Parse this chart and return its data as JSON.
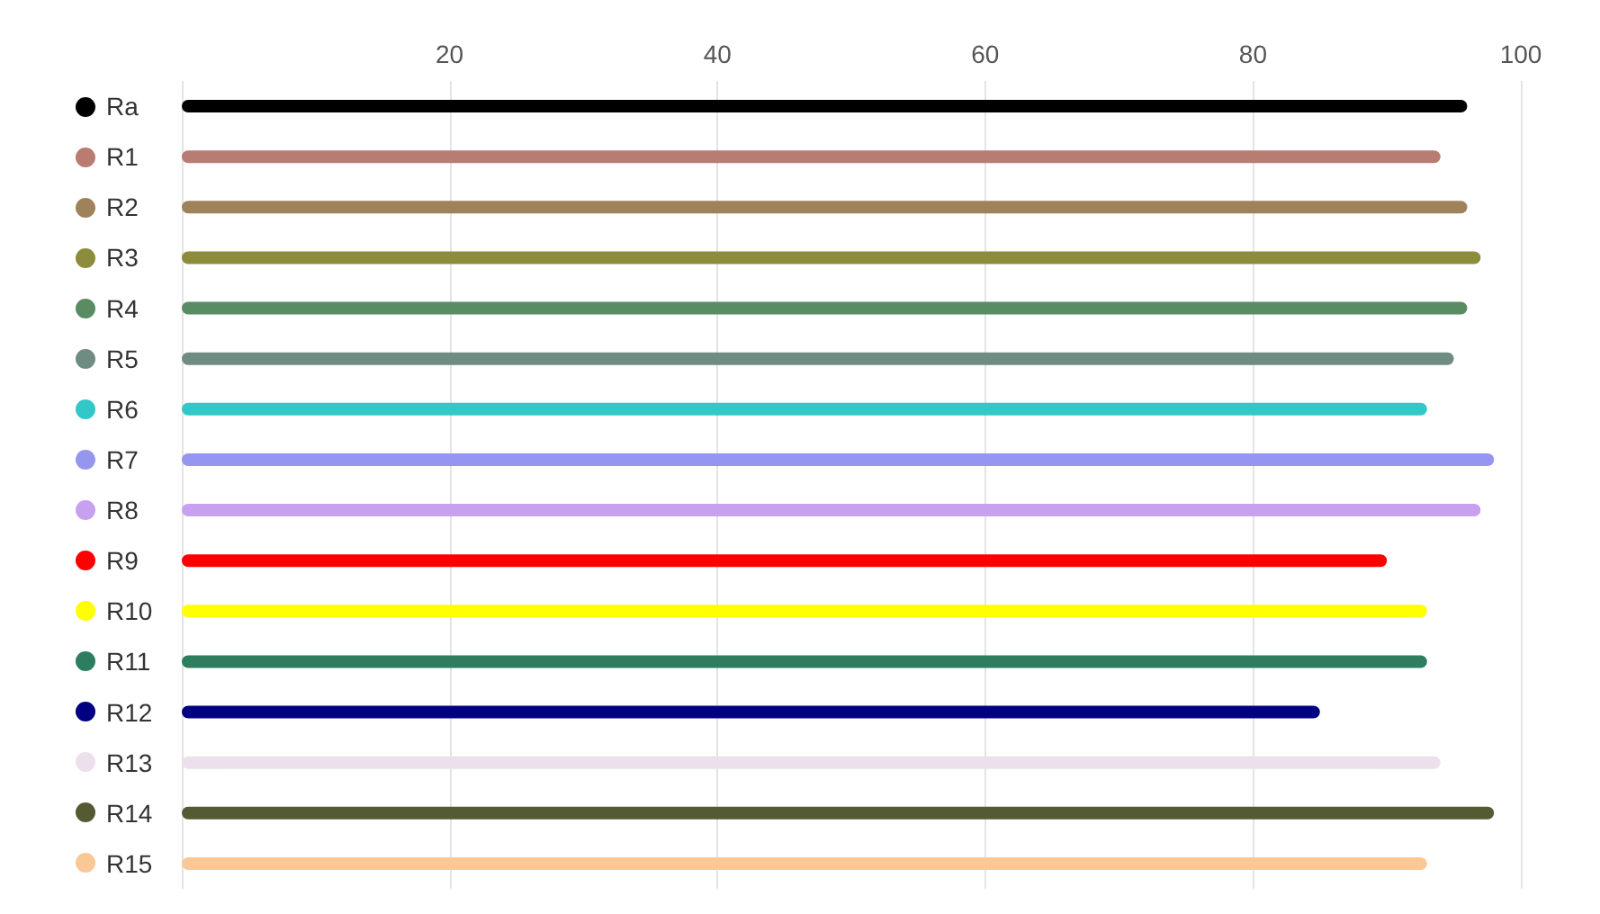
{
  "chart_data": {
    "type": "bar",
    "orientation": "horizontal",
    "categories": [
      "Ra",
      "R1",
      "R2",
      "R3",
      "R4",
      "R5",
      "R6",
      "R7",
      "R8",
      "R9",
      "R10",
      "R11",
      "R12",
      "R13",
      "R14",
      "R15"
    ],
    "values": [
      96,
      94,
      96,
      97,
      96,
      95,
      93,
      98,
      97,
      90,
      93,
      93,
      85,
      94,
      98,
      93
    ],
    "colors": [
      "#000000",
      "#b87c72",
      "#a0825a",
      "#8c8c3c",
      "#5a8c64",
      "#6e8c82",
      "#32c8c8",
      "#9696f0",
      "#c8a0f0",
      "#ff0000",
      "#ffff00",
      "#2d7d5f",
      "#000080",
      "#ece0ec",
      "#555a32",
      "#fac896"
    ],
    "xlim": [
      0,
      100
    ],
    "xticks": [
      {
        "value": 0,
        "label": null
      },
      20,
      40,
      60,
      80,
      100
    ],
    "grid": "x"
  }
}
